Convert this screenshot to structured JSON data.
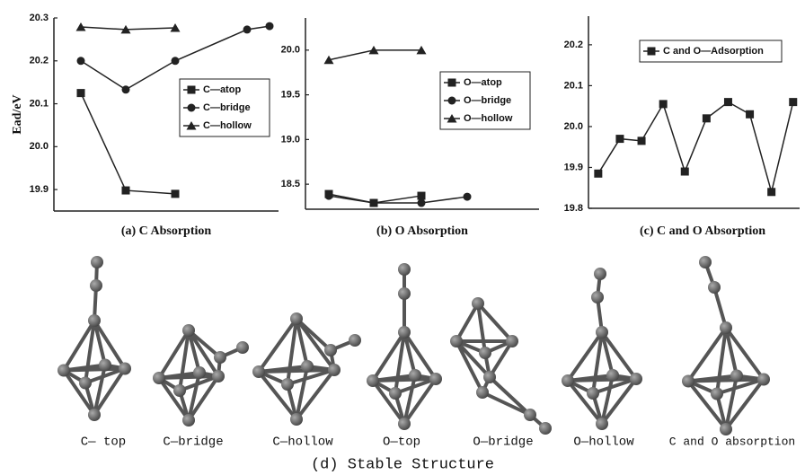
{
  "chart_data": [
    {
      "type": "line",
      "title": "(a)  C Absorption",
      "ylabel": "Ead/eV",
      "xlim": [
        0,
        5
      ],
      "ylim": [
        19.85,
        20.3
      ],
      "yticks": [
        19.9,
        {
          "value": 20,
          "label": "20.0"
        },
        20.1,
        20.2,
        20.3
      ],
      "legend": "right",
      "grid": false,
      "series": [
        {
          "name": "C—atop",
          "color": "#222222",
          "marker": "square",
          "x": [
            0.6,
            1.6,
            2.7
          ],
          "values": [
            20.125,
            19.898,
            19.89
          ]
        },
        {
          "name": "C—bridge",
          "color": "#222222",
          "marker": "circle",
          "x": [
            0.6,
            1.6,
            2.7,
            4.3,
            4.8
          ],
          "values": [
            20.2,
            20.133,
            20.2,
            20.273,
            20.281
          ]
        },
        {
          "name": "C—hollow",
          "color": "#222222",
          "marker": "triangle",
          "x": [
            0.6,
            1.6,
            2.7
          ],
          "values": [
            20.279,
            20.273,
            20.277
          ]
        }
      ]
    },
    {
      "type": "line",
      "title": "(b)  O Absorption",
      "xlim": [
        0,
        5.2
      ],
      "ylim": [
        18.22,
        20.36
      ],
      "yticks": [
        18.5,
        {
          "value": 19,
          "label": "19.0"
        },
        19.5,
        {
          "value": 20,
          "label": "20.0"
        }
      ],
      "legend": "right",
      "grid": false,
      "series": [
        {
          "name": "O—atop",
          "color": "#222222",
          "marker": "square",
          "x": [
            0.52,
            1.52,
            2.58
          ],
          "values": [
            18.39,
            18.29,
            18.37
          ]
        },
        {
          "name": "O—bridge",
          "color": "#222222",
          "marker": "circle",
          "x": [
            0.52,
            1.52,
            2.58,
            3.6
          ],
          "values": [
            18.37,
            18.29,
            18.29,
            18.36
          ]
        },
        {
          "name": "O—hollow",
          "color": "#222222",
          "marker": "triangle",
          "x": [
            0.52,
            1.52,
            2.58
          ],
          "values": [
            19.89,
            20.0,
            20.0
          ]
        }
      ]
    },
    {
      "type": "line",
      "title": "(c)  C and O Absorption",
      "xlim": [
        0.55,
        10.3
      ],
      "ylim": [
        19.8,
        20.27
      ],
      "yticks": [
        19.8,
        19.9,
        {
          "value": 20,
          "label": "20.0"
        },
        20.1,
        20.2
      ],
      "legend": "top",
      "grid": false,
      "series": [
        {
          "name": "C and O—Adsorption",
          "color": "#222222",
          "marker": "square",
          "x": [
            1,
            2,
            3,
            4,
            5,
            6,
            7,
            8,
            9,
            10
          ],
          "values": [
            19.885,
            19.97,
            19.965,
            20.055,
            19.89,
            20.02,
            20.06,
            20.03,
            19.84,
            20.06
          ]
        }
      ]
    }
  ],
  "structures": {
    "caption": "(d) Stable Structure",
    "labels": [
      "C— top",
      "C—bridge",
      "C—hollow",
      "O—top",
      "O—bridge",
      "O—hollow",
      "C and O absorption"
    ]
  }
}
